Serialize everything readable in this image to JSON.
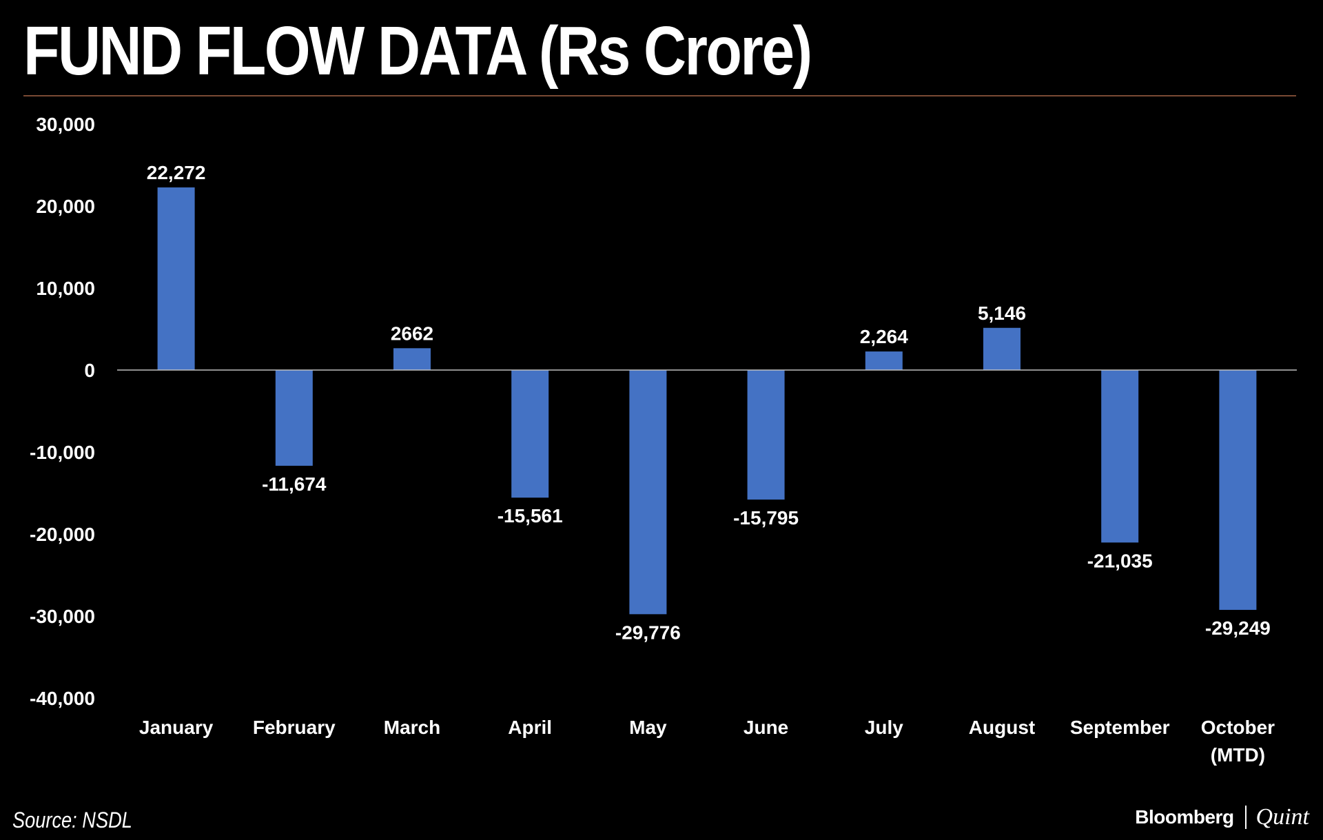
{
  "title": "FUND FLOW DATA (Rs Crore)",
  "source": "Source: NSDL",
  "brand": {
    "left": "Bloomberg",
    "right": "Quint"
  },
  "colors": {
    "bar": "#4472C4",
    "background": "#000000",
    "text": "#FFFFFF",
    "rule": "#7A4A34",
    "zero_line": "#BFBFBF"
  },
  "chart_data": {
    "type": "bar",
    "title": "FUND FLOW DATA (Rs Crore)",
    "xlabel": "",
    "ylabel": "",
    "ylim": [
      -40000,
      30000
    ],
    "yticks": [
      30000,
      20000,
      10000,
      0,
      -10000,
      -20000,
      -30000,
      -40000
    ],
    "ytick_labels": [
      "30,000",
      "20,000",
      "10,000",
      "0",
      "-10,000",
      "-20,000",
      "-30,000",
      "-40,000"
    ],
    "categories": [
      "January",
      "February",
      "March",
      "April",
      "May",
      "June",
      "July",
      "August",
      "September",
      "October\n(MTD)"
    ],
    "values": [
      22272,
      -11674,
      2662,
      -15561,
      -29776,
      -15795,
      2264,
      5146,
      -21035,
      -29249
    ],
    "data_labels": [
      "22,272",
      "-11,674",
      "2662",
      "-15,561",
      "-29,776",
      "-15,795",
      "2,264",
      "5,146",
      "-21,035",
      "-29,249"
    ],
    "grid": false,
    "legend": "none"
  }
}
